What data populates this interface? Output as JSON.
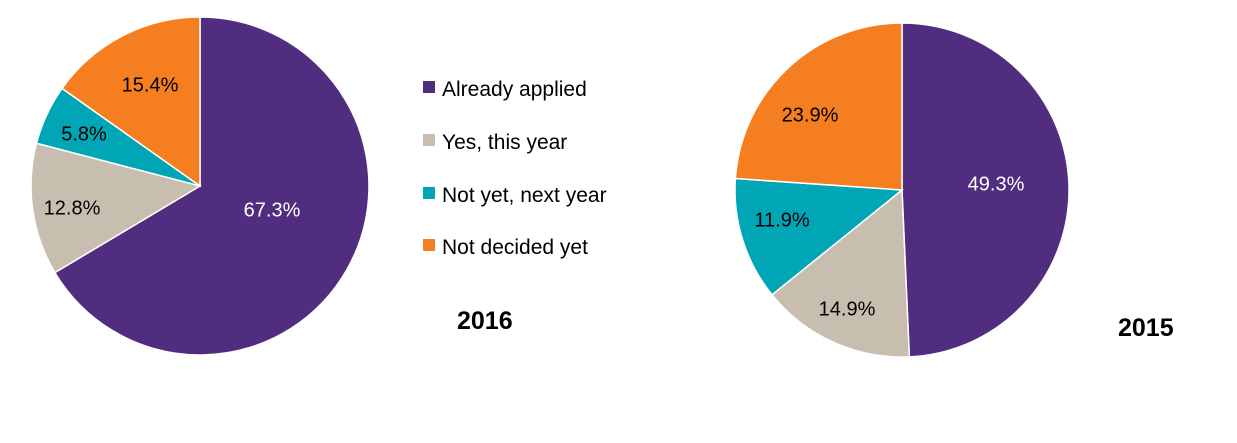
{
  "legend": {
    "position": "center",
    "items": [
      {
        "label": "Already applied",
        "color": "#512d7f"
      },
      {
        "label": "Yes, this year",
        "color": "#c8beb0"
      },
      {
        "label": "Not yet, next year",
        "color": "#00a6b6"
      },
      {
        "label": "Not decided yet",
        "color": "#f57f20"
      }
    ]
  },
  "chart_data": [
    {
      "type": "pie",
      "title": "2016",
      "categories": [
        "Already applied",
        "Yes, this year",
        "Not yet, next year",
        "Not decided yet"
      ],
      "values": [
        67.3,
        12.8,
        5.8,
        15.4
      ],
      "value_labels": [
        "67.3%",
        "12.8%",
        "5.8%",
        "15.4%"
      ],
      "colors": [
        "#512d7f",
        "#c8beb0",
        "#00a6b6",
        "#f57f20"
      ],
      "label_colors": [
        "#ffffff",
        "#000000",
        "#000000",
        "#000000"
      ]
    },
    {
      "type": "pie",
      "title": "2015",
      "categories": [
        "Already applied",
        "Yes, this year",
        "Not yet, next year",
        "Not decided yet"
      ],
      "values": [
        49.3,
        14.9,
        11.9,
        23.9
      ],
      "value_labels": [
        "49.3%",
        "14.9%",
        "11.9%",
        "23.9%"
      ],
      "colors": [
        "#512d7f",
        "#c8beb0",
        "#00a6b6",
        "#f57f20"
      ],
      "label_colors": [
        "#ffffff",
        "#000000",
        "#000000",
        "#000000"
      ]
    }
  ]
}
